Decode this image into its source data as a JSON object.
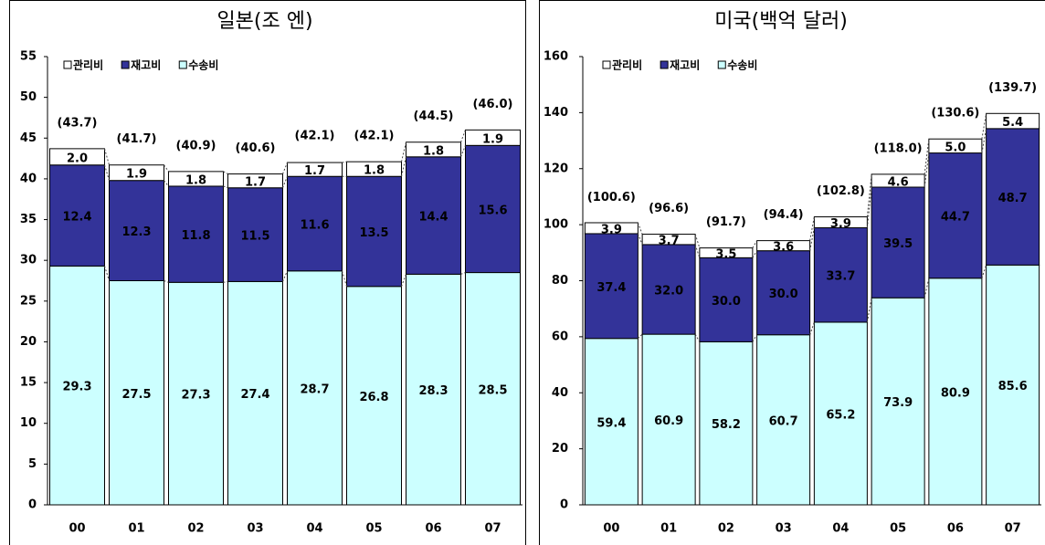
{
  "chart_data": [
    {
      "type": "stacked_bar",
      "title": "일본(조 엔)",
      "categories": [
        "00",
        "01",
        "02",
        "03",
        "04",
        "05",
        "06",
        "07"
      ],
      "series": [
        {
          "name": "관리비",
          "color": "#ffffff",
          "values": [
            2.0,
            1.9,
            1.8,
            1.7,
            1.7,
            1.8,
            1.8,
            1.9
          ],
          "value_labels": [
            "2.0",
            "1.9",
            "1.8",
            "1.7",
            "1.7",
            "1.8",
            "1.8",
            "1.9"
          ]
        },
        {
          "name": "재고비",
          "color": "#333399",
          "values": [
            12.4,
            12.3,
            11.8,
            11.5,
            11.6,
            13.5,
            14.4,
            15.6
          ],
          "value_labels": [
            "12.4",
            "12.3",
            "11.8",
            "11.5",
            "11.6",
            "13.5",
            "14.4",
            "15.6"
          ]
        },
        {
          "name": "수송비",
          "color": "#ccffff",
          "values": [
            29.3,
            27.5,
            27.3,
            27.4,
            28.7,
            26.8,
            28.3,
            28.5
          ],
          "value_labels": [
            "29.3",
            "27.5",
            "27.3",
            "27.4",
            "28.7",
            "26.8",
            "28.3",
            "28.5"
          ]
        }
      ],
      "totals": {
        "values": [
          43.7,
          41.7,
          40.9,
          40.6,
          42.1,
          42.1,
          44.5,
          46.0
        ],
        "value_labels": [
          "(43.7)",
          "(41.7)",
          "(40.9)",
          "(40.6)",
          "(42.1)",
          "(42.1)",
          "(44.5)",
          "(46.0)"
        ]
      },
      "ylim": [
        0,
        55
      ],
      "yticks": [
        0,
        5,
        10,
        15,
        20,
        25,
        30,
        35,
        40,
        45,
        50,
        55
      ]
    },
    {
      "type": "stacked_bar",
      "title": "미국(백억 달러)",
      "categories": [
        "00",
        "01",
        "02",
        "03",
        "04",
        "05",
        "06",
        "07"
      ],
      "series": [
        {
          "name": "관리비",
          "color": "#ffffff",
          "values": [
            3.9,
            3.7,
            3.5,
            3.6,
            3.9,
            4.6,
            5.0,
            5.4
          ],
          "value_labels": [
            "3.9",
            "3.7",
            "3.5",
            "3.6",
            "3.9",
            "4.6",
            "5.0",
            "5.4"
          ]
        },
        {
          "name": "재고비",
          "color": "#333399",
          "values": [
            37.4,
            32.0,
            30.0,
            30.0,
            33.7,
            39.5,
            44.7,
            48.7
          ],
          "value_labels": [
            "37.4",
            "32.0",
            "30.0",
            "30.0",
            "33.7",
            "39.5",
            "44.7",
            "48.7"
          ]
        },
        {
          "name": "수송비",
          "color": "#ccffff",
          "values": [
            59.4,
            60.9,
            58.2,
            60.7,
            65.2,
            73.9,
            80.9,
            85.6
          ],
          "value_labels": [
            "59.4",
            "60.9",
            "58.2",
            "60.7",
            "65.2",
            "73.9",
            "80.9",
            "85.6"
          ]
        }
      ],
      "totals": {
        "values": [
          100.6,
          96.6,
          91.7,
          94.4,
          102.8,
          118.0,
          130.6,
          139.7
        ],
        "value_labels": [
          "(100.6)",
          "(96.6)",
          "(91.7)",
          "(94.4)",
          "(102.8)",
          "(118.0)",
          "(130.6)",
          "(139.7)"
        ]
      },
      "ylim": [
        0,
        160
      ],
      "yticks": [
        0,
        20,
        40,
        60,
        80,
        100,
        120,
        140,
        160
      ]
    }
  ]
}
